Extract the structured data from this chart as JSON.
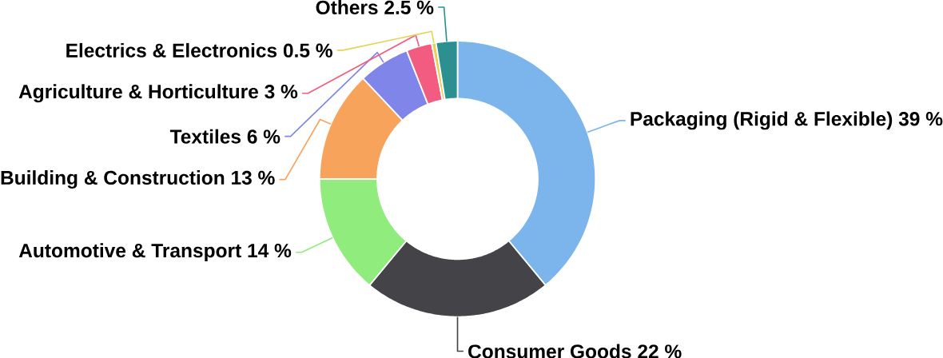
{
  "chart_data": {
    "type": "donut",
    "categories": [
      "Packaging (Rigid & Flexible)",
      "Consumer Goods",
      "Automotive & Transport",
      "Building & Construction",
      "Textiles",
      "Agriculture & Horticulture",
      "Electrics & Electronics",
      "Others"
    ],
    "values": [
      39,
      22,
      14,
      13,
      6,
      3,
      0.5,
      2.5
    ],
    "value_labels": [
      "39 %",
      "22 %",
      "14 %",
      "13 %",
      "6 %",
      "3 %",
      "0.5 %",
      "2.5 %"
    ],
    "colors": [
      "#7cb5ec",
      "#434348",
      "#90ed7d",
      "#f7a35c",
      "#8085e9",
      "#f15c80",
      "#e4d354",
      "#2b908f"
    ]
  }
}
